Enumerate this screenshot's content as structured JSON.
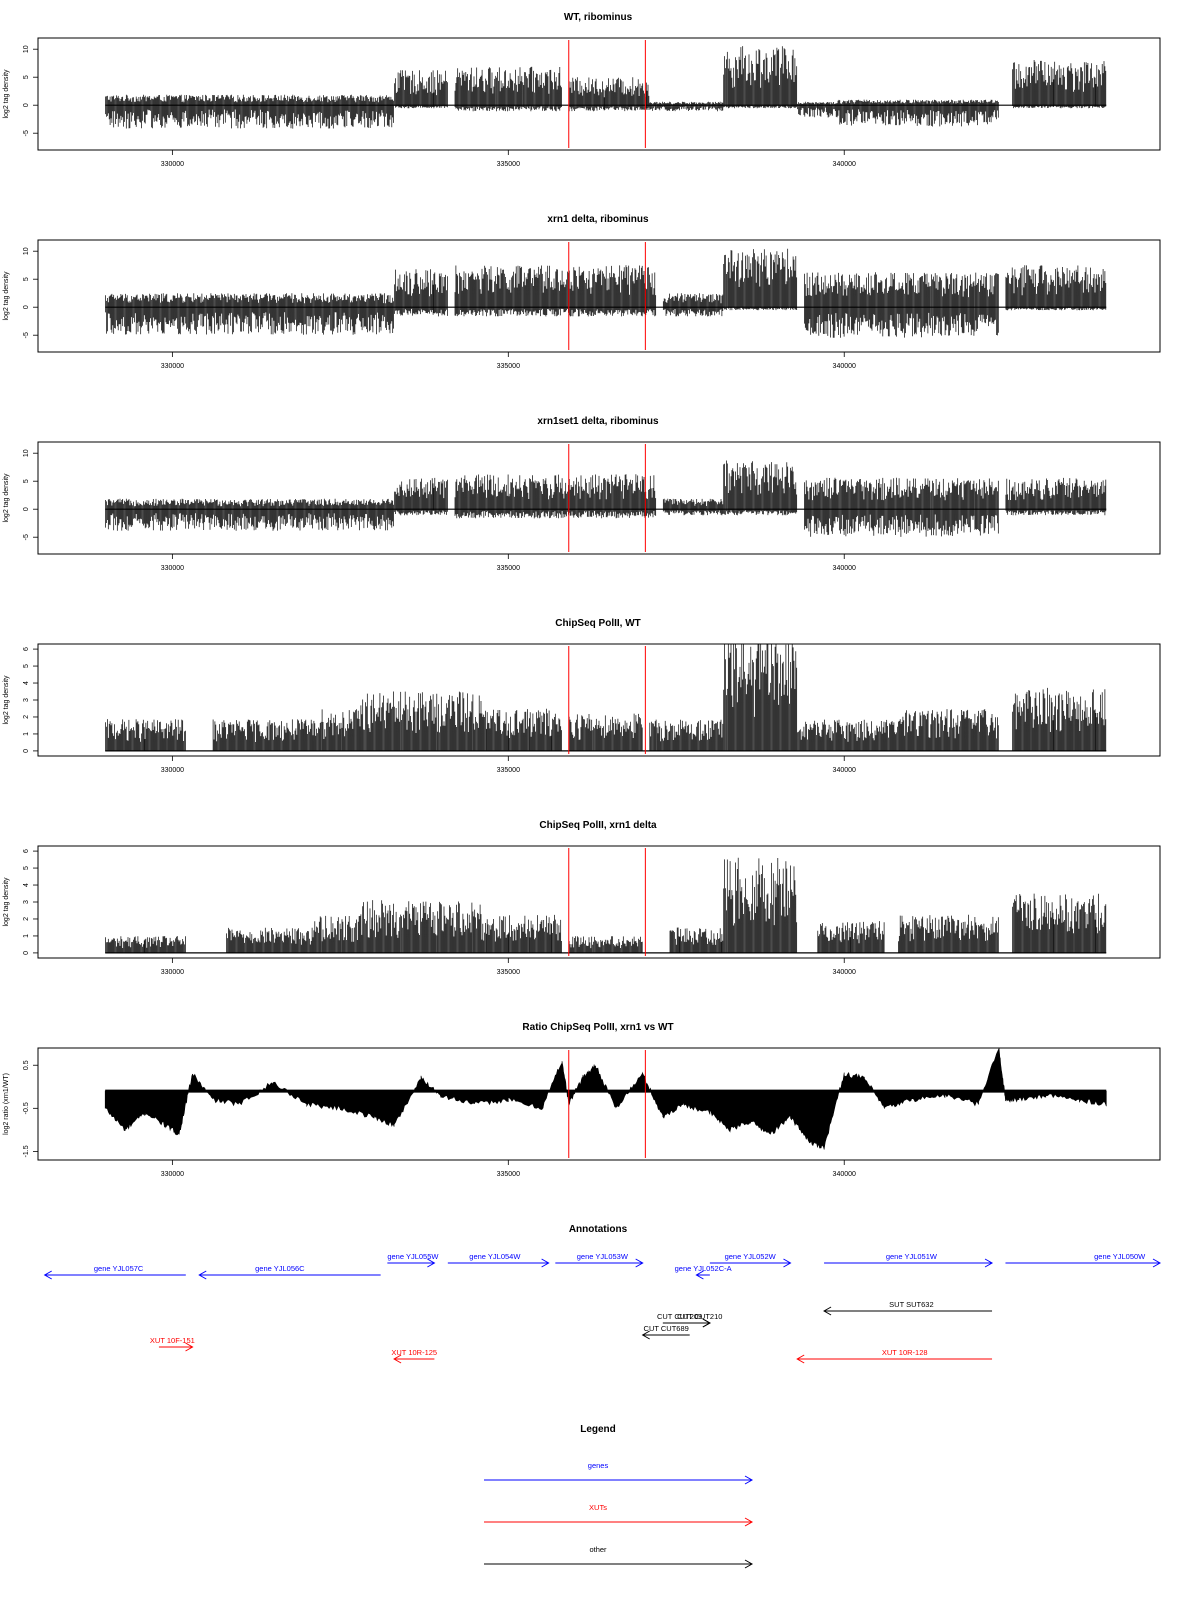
{
  "colors": {
    "gene": "#0000ff",
    "xut": "#ff0000",
    "other": "#000000",
    "marker": "#ff0000",
    "bar": "#000000",
    "frame": "#000000"
  },
  "chart_data": [
    {
      "type": "bar",
      "title": "WT, ribominus",
      "ylabel": "log2 tag density",
      "xlim": [
        328000,
        344700
      ],
      "ylim": [
        -8,
        12
      ],
      "yticks": [
        "-5",
        "0",
        "5",
        "10"
      ],
      "ytick_values": [
        -5,
        0,
        5,
        10
      ],
      "xticks": [
        "330000",
        "335000",
        "340000"
      ],
      "xtick_values": [
        330000,
        335000,
        340000
      ],
      "markers_x": [
        335900,
        337040
      ],
      "segments": [
        {
          "from": 329000,
          "to": 333300,
          "pos": 1.5,
          "neg": -3.8
        },
        {
          "from": 333300,
          "to": 334100,
          "pos": 5,
          "neg": -0.5
        },
        {
          "from": 334200,
          "to": 335800,
          "pos": 5.5,
          "neg": -1
        },
        {
          "from": 335900,
          "to": 337100,
          "pos": 4,
          "neg": -1
        },
        {
          "from": 337100,
          "to": 338200,
          "pos": 0.5,
          "neg": -1
        },
        {
          "from": 338200,
          "to": 339300,
          "pos": 8.5,
          "neg": -0.5
        },
        {
          "from": 339300,
          "to": 339900,
          "pos": 0.5,
          "neg": -2
        },
        {
          "from": 339900,
          "to": 342300,
          "pos": 0.8,
          "neg": -3.5
        },
        {
          "from": 342500,
          "to": 343900,
          "pos": 6.5,
          "neg": -0.5
        }
      ]
    },
    {
      "type": "bar",
      "title": "xrn1 delta, ribominus",
      "ylabel": "log2 tag density",
      "xlim": [
        328000,
        344700
      ],
      "ylim": [
        -8,
        12
      ],
      "yticks": [
        "-5",
        "0",
        "5",
        "10"
      ],
      "ytick_values": [
        -5,
        0,
        5,
        10
      ],
      "xticks": [
        "330000",
        "335000",
        "340000"
      ],
      "xtick_values": [
        330000,
        335000,
        340000
      ],
      "markers_x": [
        335900,
        337040
      ],
      "segments": [
        {
          "from": 329000,
          "to": 333300,
          "pos": 2,
          "neg": -4.5
        },
        {
          "from": 333300,
          "to": 334100,
          "pos": 5.5,
          "neg": -1.5
        },
        {
          "from": 334200,
          "to": 337200,
          "pos": 6,
          "neg": -1.5
        },
        {
          "from": 337300,
          "to": 338200,
          "pos": 2,
          "neg": -1.5
        },
        {
          "from": 338200,
          "to": 339300,
          "pos": 8.5,
          "neg": -0.5
        },
        {
          "from": 339400,
          "to": 342300,
          "pos": 5,
          "neg": -5
        },
        {
          "from": 342400,
          "to": 343900,
          "pos": 6,
          "neg": -0.5
        }
      ]
    },
    {
      "type": "bar",
      "title": "xrn1set1 delta, ribominus",
      "ylabel": "log2 tag density",
      "xlim": [
        328000,
        344700
      ],
      "ylim": [
        -8,
        12
      ],
      "yticks": [
        "-5",
        "0",
        "5",
        "10"
      ],
      "ytick_values": [
        -5,
        0,
        5,
        10
      ],
      "xticks": [
        "330000",
        "335000",
        "340000"
      ],
      "xtick_values": [
        330000,
        335000,
        340000
      ],
      "markers_x": [
        335900,
        337040
      ],
      "segments": [
        {
          "from": 329000,
          "to": 333300,
          "pos": 1.5,
          "neg": -3.5
        },
        {
          "from": 333300,
          "to": 334100,
          "pos": 4.5,
          "neg": -1
        },
        {
          "from": 334200,
          "to": 337200,
          "pos": 5,
          "neg": -1.5
        },
        {
          "from": 337300,
          "to": 338200,
          "pos": 1.5,
          "neg": -1
        },
        {
          "from": 338200,
          "to": 339300,
          "pos": 7,
          "neg": -1
        },
        {
          "from": 339400,
          "to": 342300,
          "pos": 4.5,
          "neg": -4.5
        },
        {
          "from": 342400,
          "to": 343900,
          "pos": 4.5,
          "neg": -1
        }
      ]
    },
    {
      "type": "bar",
      "title": "ChipSeq PolII, WT",
      "ylabel": "log2 tag density",
      "xlim": [
        328000,
        344700
      ],
      "ylim": [
        -0.3,
        6.3
      ],
      "yticks": [
        "0",
        "1",
        "2",
        "3",
        "4",
        "5",
        "6"
      ],
      "ytick_values": [
        0,
        1,
        2,
        3,
        4,
        5,
        6
      ],
      "xticks": [
        "330000",
        "335000",
        "340000"
      ],
      "xtick_values": [
        330000,
        335000,
        340000
      ],
      "markers_x": [
        335900,
        337040
      ],
      "segments": [
        {
          "from": 329000,
          "to": 330200,
          "pos": 1.5,
          "neg": 0
        },
        {
          "from": 330600,
          "to": 332100,
          "pos": 1.5,
          "neg": 0
        },
        {
          "from": 332100,
          "to": 332800,
          "pos": 2,
          "neg": 0
        },
        {
          "from": 332800,
          "to": 334600,
          "pos": 2.8,
          "neg": 0
        },
        {
          "from": 334600,
          "to": 335800,
          "pos": 2,
          "neg": 0
        },
        {
          "from": 335900,
          "to": 337000,
          "pos": 1.8,
          "neg": 0
        },
        {
          "from": 337100,
          "to": 338200,
          "pos": 1.5,
          "neg": 0
        },
        {
          "from": 338200,
          "to": 339300,
          "pos": 5.5,
          "neg": 0
        },
        {
          "from": 339300,
          "to": 340800,
          "pos": 1.5,
          "neg": 0
        },
        {
          "from": 340800,
          "to": 342300,
          "pos": 2,
          "neg": 0
        },
        {
          "from": 342500,
          "to": 343900,
          "pos": 3,
          "neg": 0
        }
      ]
    },
    {
      "type": "bar",
      "title": "ChipSeq PolII, xrn1 delta",
      "ylabel": "log2 tag density",
      "xlim": [
        328000,
        344700
      ],
      "ylim": [
        -0.3,
        6.3
      ],
      "yticks": [
        "0",
        "1",
        "2",
        "3",
        "4",
        "5",
        "6"
      ],
      "ytick_values": [
        0,
        1,
        2,
        3,
        4,
        5,
        6
      ],
      "xticks": [
        "330000",
        "335000",
        "340000"
      ],
      "xtick_values": [
        330000,
        335000,
        340000
      ],
      "markers_x": [
        335900,
        337040
      ],
      "segments": [
        {
          "from": 329000,
          "to": 330200,
          "pos": 0.8,
          "neg": 0
        },
        {
          "from": 330800,
          "to": 332100,
          "pos": 1.2,
          "neg": 0
        },
        {
          "from": 332100,
          "to": 332800,
          "pos": 1.8,
          "neg": 0
        },
        {
          "from": 332800,
          "to": 334600,
          "pos": 2.5,
          "neg": 0
        },
        {
          "from": 334600,
          "to": 335800,
          "pos": 1.8,
          "neg": 0
        },
        {
          "from": 335900,
          "to": 337000,
          "pos": 0.8,
          "neg": 0
        },
        {
          "from": 337400,
          "to": 338200,
          "pos": 1.2,
          "neg": 0
        },
        {
          "from": 338200,
          "to": 339300,
          "pos": 4.5,
          "neg": 0
        },
        {
          "from": 339600,
          "to": 340600,
          "pos": 1.5,
          "neg": 0
        },
        {
          "from": 340800,
          "to": 342300,
          "pos": 1.8,
          "neg": 0
        },
        {
          "from": 342500,
          "to": 343900,
          "pos": 2.8,
          "neg": 0
        }
      ]
    },
    {
      "type": "area",
      "title": "Ratio ChipSeq PolII, xrn1 vs WT",
      "ylabel": "log2 ratio (xrn1/WT)",
      "xlim": [
        328000,
        344700
      ],
      "ylim": [
        -1.7,
        0.9
      ],
      "yticks": [
        "-1.5",
        "-0.5",
        "0.5"
      ],
      "ytick_values": [
        -1.5,
        -0.5,
        0.5
      ],
      "xticks": [
        "330000",
        "335000",
        "340000"
      ],
      "xtick_values": [
        330000,
        335000,
        340000
      ],
      "markers_x": [
        335900,
        337040
      ],
      "baseline": -0.1,
      "x": [
        329000,
        329300,
        329600,
        329900,
        330100,
        330300,
        330600,
        331000,
        331500,
        332000,
        332500,
        333000,
        333300,
        333700,
        334000,
        334500,
        335000,
        335500,
        335800,
        335900,
        336100,
        336300,
        336600,
        337000,
        337300,
        337600,
        338000,
        338300,
        338600,
        338900,
        339200,
        339500,
        339700,
        340000,
        340300,
        340600,
        341000,
        341500,
        342000,
        342300,
        342400,
        342600,
        343000,
        343500,
        343900
      ],
      "y": [
        -0.5,
        -1.0,
        -0.6,
        -0.9,
        -1.1,
        0.3,
        -0.3,
        -0.4,
        0.1,
        -0.4,
        -0.5,
        -0.7,
        -0.9,
        0.2,
        -0.2,
        -0.4,
        -0.3,
        -0.5,
        0.6,
        -0.4,
        0.2,
        0.5,
        -0.5,
        0.3,
        -0.7,
        -0.4,
        -0.6,
        -1.0,
        -0.8,
        -1.1,
        -0.7,
        -1.3,
        -1.4,
        0.3,
        0.2,
        -0.5,
        -0.3,
        -0.2,
        -0.4,
        0.9,
        -0.3,
        -0.3,
        -0.2,
        -0.3,
        -0.4
      ]
    }
  ],
  "annotations": {
    "title": "Annotations",
    "xlim": [
      328000,
      344700
    ],
    "items": [
      {
        "kind": "gene",
        "label": "gene YJL057C",
        "start": 328100,
        "end": 330200,
        "strand": "-",
        "row": 1,
        "label_x": 329200
      },
      {
        "kind": "gene",
        "label": "gene YJL056C",
        "start": 330400,
        "end": 333100,
        "strand": "-",
        "row": 1,
        "label_x": 331600
      },
      {
        "kind": "gene",
        "label": "gene YJL055W",
        "start": 333200,
        "end": 333900,
        "strand": "+",
        "row": 0,
        "label_x": 333580
      },
      {
        "kind": "gene",
        "label": "gene YJL054W",
        "start": 334100,
        "end": 335600,
        "strand": "+",
        "row": 0,
        "label_x": 334800
      },
      {
        "kind": "gene",
        "label": "gene YJL053W",
        "start": 335700,
        "end": 337000,
        "strand": "+",
        "row": 0,
        "label_x": 336400
      },
      {
        "kind": "gene",
        "label": "gene YJL052C-A",
        "start": 337800,
        "end": 338000,
        "strand": "-",
        "row": 1,
        "label_x": 337900
      },
      {
        "kind": "gene",
        "label": "gene YJL052W",
        "start": 338000,
        "end": 339200,
        "strand": "+",
        "row": 0,
        "label_x": 338600
      },
      {
        "kind": "gene",
        "label": "gene YJL051W",
        "start": 339700,
        "end": 342200,
        "strand": "+",
        "row": 0,
        "label_x": 341000
      },
      {
        "kind": "gene",
        "label": "gene YJL050W",
        "start": 342400,
        "end": 344700,
        "strand": "+",
        "row": 0,
        "label_x": 344100
      },
      {
        "kind": "other",
        "label": "SUT SUT632",
        "start": 339700,
        "end": 342200,
        "strand": "-",
        "row": 4,
        "label_x": 341000
      },
      {
        "kind": "other",
        "label": "CUT CUT209",
        "start": 337300,
        "end": 338000,
        "strand": "+",
        "row": 5,
        "label_x": 337550
      },
      {
        "kind": "other",
        "label": "CUT CUT210",
        "start": 337700,
        "end": 338000,
        "strand": "+",
        "row": 5,
        "label_x": 337850
      },
      {
        "kind": "other",
        "label": "CUT CUT689",
        "start": 337000,
        "end": 337700,
        "strand": "-",
        "row": 6,
        "label_x": 337350
      },
      {
        "kind": "xut",
        "label": "XUT 10F-151",
        "start": 329800,
        "end": 330300,
        "strand": "+",
        "row": 7,
        "label_x": 330000
      },
      {
        "kind": "xut",
        "label": "XUT 10R-125",
        "start": 333300,
        "end": 333900,
        "strand": "-",
        "row": 8,
        "label_x": 333600
      },
      {
        "kind": "xut",
        "label": "XUT 10R-128",
        "start": 339300,
        "end": 342200,
        "strand": "-",
        "row": 8,
        "label_x": 340900
      }
    ]
  },
  "legend": {
    "title": "Legend",
    "items": [
      {
        "kind": "gene",
        "label": "genes"
      },
      {
        "kind": "xut",
        "label": "XUTs"
      },
      {
        "kind": "other",
        "label": "other"
      }
    ]
  }
}
